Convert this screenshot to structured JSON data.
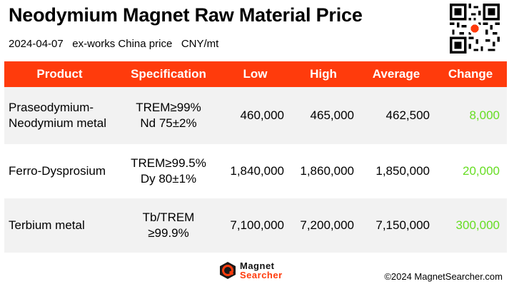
{
  "header": {
    "title": "Neodymium Magnet Raw Material Price",
    "date": "2024-04-07",
    "basis": "ex-works China price",
    "unit": "CNY/mt"
  },
  "qr_icon": "qr-code-icon",
  "table": {
    "columns": [
      "Product",
      "Specification",
      "Low",
      "High",
      "Average",
      "Change"
    ],
    "rows": [
      {
        "product": [
          "Praseodymium-",
          "Neodymium metal"
        ],
        "spec": [
          "TREM≥99%",
          "Nd 75±2%"
        ],
        "low": "460,000",
        "high": "465,000",
        "average": "462,500",
        "change": "8,000"
      },
      {
        "product": [
          "Ferro-Dysprosium"
        ],
        "spec": [
          "TREM≥99.5%",
          "Dy 80±1%"
        ],
        "low": "1,840,000",
        "high": "1,860,000",
        "average": "1,850,000",
        "change": "20,000"
      },
      {
        "product": [
          "Terbium metal"
        ],
        "spec": [
          "Tb/TREM",
          "≥99.9%"
        ],
        "low": "7,100,000",
        "high": "7,200,000",
        "average": "7,150,000",
        "change": "300,000"
      }
    ]
  },
  "colors": {
    "accent": "#ff3b0c",
    "change_up": "#66dd22",
    "row_alt": "#f2f2f2"
  },
  "footer": {
    "logo_line1": "Magnet",
    "logo_line2": "Searcher",
    "copyright": "©2024 MagnetSearcher.com"
  }
}
